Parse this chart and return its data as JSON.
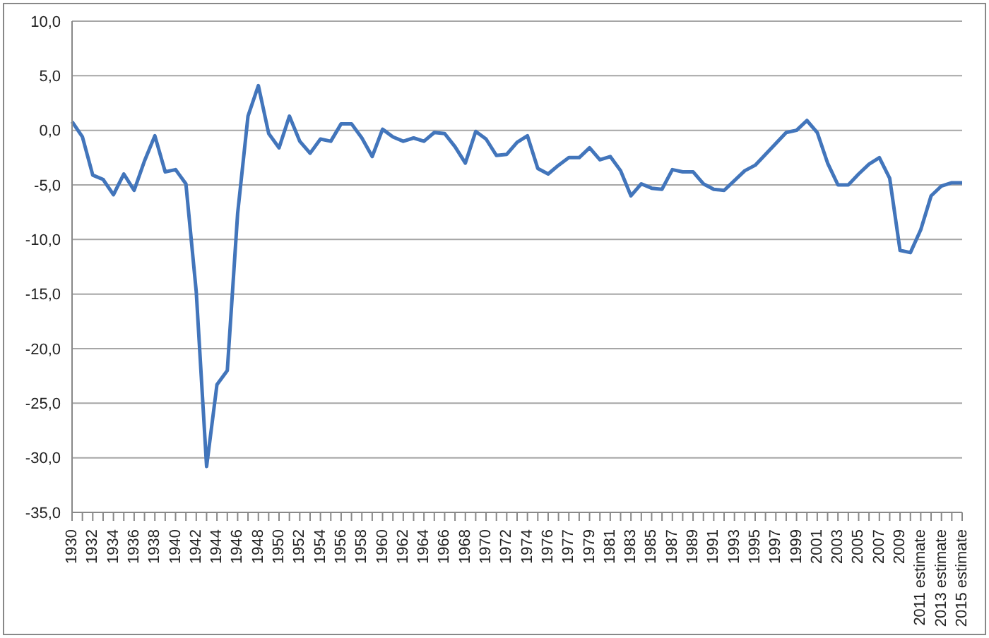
{
  "chart_data": {
    "type": "line",
    "categories": [
      "1930",
      null,
      "1932",
      null,
      "1934",
      null,
      "1936",
      null,
      "1938",
      null,
      "1940",
      null,
      "1942",
      null,
      "1944",
      null,
      "1946",
      null,
      "1948",
      null,
      "1950",
      null,
      "1952",
      null,
      "1954",
      null,
      "1956",
      null,
      "1958",
      null,
      "1960",
      null,
      "1962",
      null,
      "1964",
      null,
      "1966",
      null,
      "1968",
      null,
      "1970",
      null,
      "1972",
      null,
      "1974",
      null,
      "1976",
      null,
      "1977",
      null,
      "1979",
      null,
      "1981",
      null,
      "1983",
      null,
      "1985",
      null,
      "1987",
      null,
      "1989",
      null,
      "1991",
      null,
      "1993",
      null,
      "1995",
      null,
      "1997",
      null,
      "1999",
      null,
      "2001",
      null,
      "2003",
      null,
      "2005",
      null,
      "2007",
      null,
      "2009",
      null,
      "2011 estimate",
      null,
      "2013 estimate",
      null,
      "2015 estimate"
    ],
    "series": [
      {
        "color": "#4275bb",
        "values": [
          0.8,
          -0.6,
          -4.1,
          -4.5,
          -5.9,
          -4.0,
          -5.5,
          -2.8,
          -0.5,
          -3.8,
          -3.6,
          -4.9,
          -14.8,
          -30.8,
          -23.3,
          -22.0,
          -7.6,
          1.3,
          4.1,
          -0.3,
          -1.6,
          1.3,
          -1.0,
          -2.1,
          -0.8,
          -1.0,
          0.6,
          0.6,
          -0.7,
          -2.4,
          0.1,
          -0.6,
          -1.0,
          -0.7,
          -1.0,
          -0.2,
          -0.3,
          -1.5,
          -3.0,
          -0.1,
          -0.8,
          -2.3,
          -2.2,
          -1.1,
          -0.5,
          -3.5,
          -4.0,
          -3.2,
          -2.5,
          -2.5,
          -1.6,
          -2.7,
          -2.4,
          -3.7,
          -6.0,
          -4.9,
          -5.3,
          -5.4,
          -3.6,
          -3.8,
          -3.8,
          -4.9,
          -5.4,
          -5.5,
          -4.6,
          -3.7,
          -3.2,
          -2.2,
          -1.2,
          -0.2,
          0.0,
          0.9,
          -0.2,
          -3.0,
          -5.0,
          -5.0,
          -4.0,
          -3.1,
          -2.5,
          -4.4,
          -11.0,
          -11.2,
          -9.1,
          -6.0,
          -5.1,
          -4.8,
          -4.8
        ]
      }
    ],
    "ylim": [
      -35,
      10
    ],
    "yticks": [
      {
        "value": -35,
        "label": "-35,0"
      },
      {
        "value": -30,
        "label": "-30,0"
      },
      {
        "value": -25,
        "label": "-25,0"
      },
      {
        "value": -20,
        "label": "-20,0"
      },
      {
        "value": -15,
        "label": "-15,0"
      },
      {
        "value": -10,
        "label": "-10,0"
      },
      {
        "value": -5,
        "label": "-5,0"
      },
      {
        "value": 0,
        "label": "0,0"
      },
      {
        "value": 5,
        "label": "5,0"
      },
      {
        "value": 10,
        "label": "10,0"
      }
    ],
    "grid": "y",
    "marker": "none",
    "line_style": "solid"
  }
}
